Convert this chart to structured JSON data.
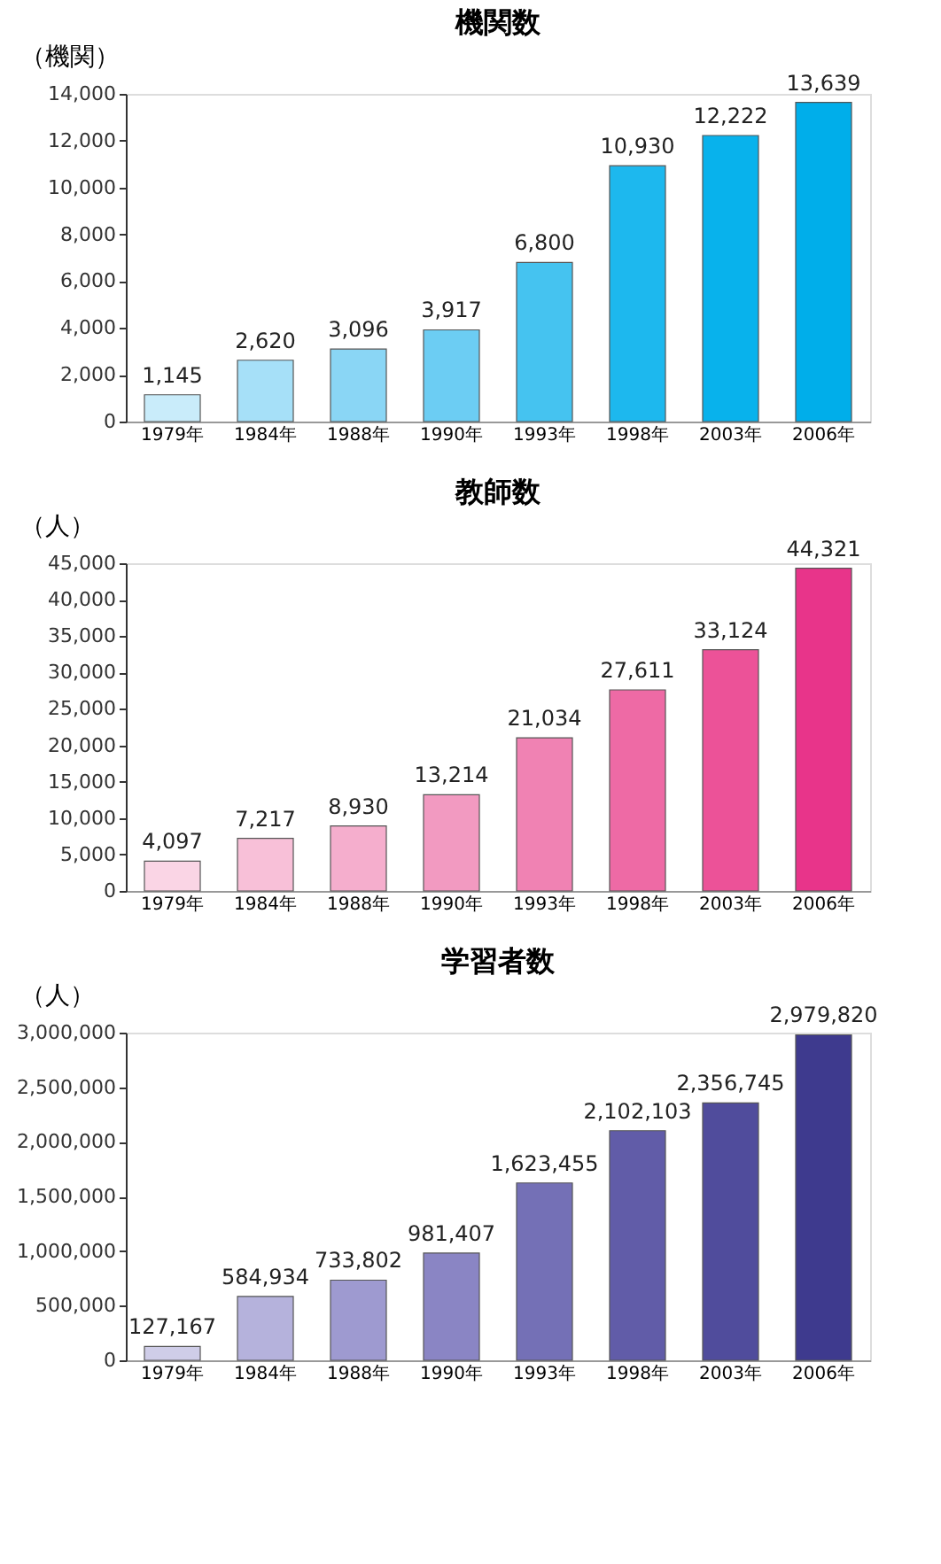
{
  "chart_data": [
    {
      "type": "bar",
      "title": "機関数",
      "ylabel": "（機関）",
      "categories": [
        "1979年",
        "1984年",
        "1988年",
        "1990年",
        "1993年",
        "1998年",
        "2003年",
        "2006年"
      ],
      "values": [
        1145,
        2620,
        3096,
        3917,
        6800,
        10930,
        12222,
        13639
      ],
      "value_labels": [
        "1,145",
        "2,620",
        "3,096",
        "3,917",
        "6,800",
        "10,930",
        "12,222",
        "13,639"
      ],
      "colors": [
        "#c9ecfa",
        "#a6e0f8",
        "#8ad6f5",
        "#6ccdf3",
        "#45c3f0",
        "#1db8ee",
        "#08b2ec",
        "#00aeea"
      ],
      "ylim": [
        0,
        14000
      ],
      "yticks": [
        0,
        {
          "value": 2000,
          "label": "2,000"
        },
        {
          "value": 4000,
          "label": "4,000"
        },
        {
          "value": 6000,
          "label": "6,000"
        },
        {
          "value": 8000,
          "label": "8,000"
        },
        {
          "value": 10000,
          "label": "10,000"
        },
        {
          "value": 12000,
          "label": "12,000"
        },
        {
          "value": 14000,
          "label": "14,000"
        }
      ],
      "grid": false
    },
    {
      "type": "bar",
      "title": "教師数",
      "ylabel": "（人）",
      "categories": [
        "1979年",
        "1984年",
        "1988年",
        "1990年",
        "1993年",
        "1998年",
        "2003年",
        "2006年"
      ],
      "values": [
        4097,
        7217,
        8930,
        13214,
        21034,
        27611,
        33124,
        44321
      ],
      "value_labels": [
        "4,097",
        "7,217",
        "8,930",
        "13,214",
        "21,034",
        "27,611",
        "33,124",
        "44,321"
      ],
      "colors": [
        "#fad5e5",
        "#f8c0d8",
        "#f5aecd",
        "#f29ac1",
        "#f082b3",
        "#ee6aa5",
        "#ec5298",
        "#e8348a"
      ],
      "ylim": [
        0,
        45000
      ],
      "yticks": [
        0,
        {
          "value": 5000,
          "label": "5,000"
        },
        {
          "value": 10000,
          "label": "10,000"
        },
        {
          "value": 15000,
          "label": "15,000"
        },
        {
          "value": 20000,
          "label": "20,000"
        },
        {
          "value": 25000,
          "label": "25,000"
        },
        {
          "value": 30000,
          "label": "30,000"
        },
        {
          "value": 35000,
          "label": "35,000"
        },
        {
          "value": 40000,
          "label": "40,000"
        },
        {
          "value": 45000,
          "label": "45,000"
        }
      ],
      "grid": false
    },
    {
      "type": "bar",
      "title": "学習者数",
      "ylabel": "（人）",
      "categories": [
        "1979年",
        "1984年",
        "1988年",
        "1990年",
        "1993年",
        "1998年",
        "2003年",
        "2006年"
      ],
      "values": [
        127167,
        584934,
        733802,
        981407,
        1623455,
        2102103,
        2356745,
        2979820
      ],
      "value_labels": [
        "127,167",
        "584,934",
        "733,802",
        "981,407",
        "1,623,455",
        "2,102,103",
        "2,356,745",
        "2,979,820"
      ],
      "colors": [
        "#cfcde8",
        "#b5b2dc",
        "#9e9ad0",
        "#8a85c4",
        "#7470b6",
        "#615ca8",
        "#504c9c",
        "#3e3a8e"
      ],
      "ylim": [
        0,
        3000000
      ],
      "yticks": [
        0,
        {
          "value": 500000,
          "label": "500,000"
        },
        {
          "value": 1000000,
          "label": "1,000,000"
        },
        {
          "value": 1500000,
          "label": "1,500,000"
        },
        {
          "value": 2000000,
          "label": "2,000,000"
        },
        {
          "value": 2500000,
          "label": "2,500,000"
        },
        {
          "value": 3000000,
          "label": "3,000,000"
        }
      ],
      "grid": false
    }
  ]
}
